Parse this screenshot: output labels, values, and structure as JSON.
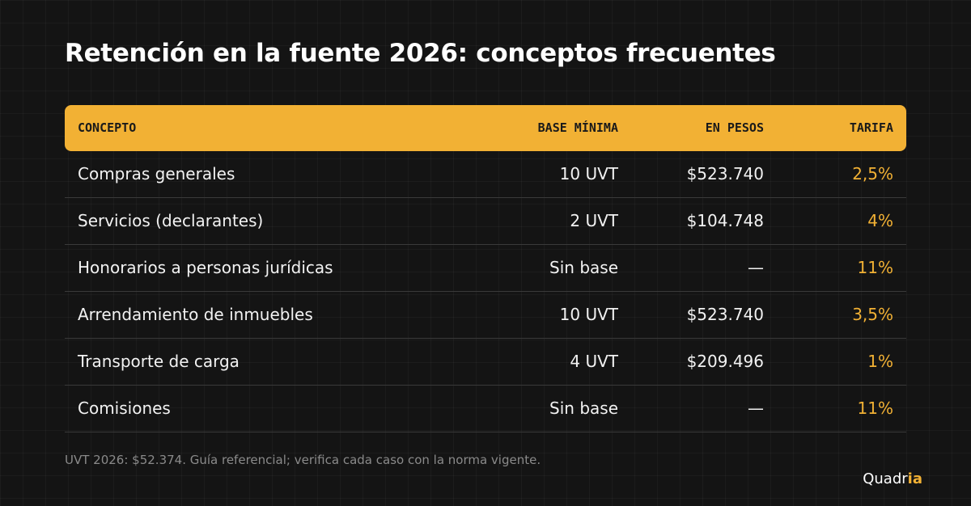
{
  "header": {
    "title": "Retención en la fuente 2026: conceptos frecuentes"
  },
  "table": {
    "columns": [
      "CONCEPTO",
      "BASE MÍNIMA",
      "EN PESOS",
      "TARIFA"
    ],
    "rows": [
      [
        "Compras generales",
        "10 UVT",
        "$523.740",
        "2,5%"
      ],
      [
        "Servicios (declarantes)",
        "2 UVT",
        "$104.748",
        "4%"
      ],
      [
        "Honorarios a personas jurídicas",
        "Sin base",
        "—",
        "11%"
      ],
      [
        "Arrendamiento de inmuebles",
        "10 UVT",
        "$523.740",
        "3,5%"
      ],
      [
        "Transporte de carga",
        "4 UVT",
        "$209.496",
        "1%"
      ],
      [
        "Comisiones",
        "Sin base",
        "—",
        "11%"
      ]
    ]
  },
  "footnote": "UVT 2026: $52.374. Guía referencial; verifica cada caso con la norma vigente.",
  "brand": {
    "prefix": "Quadr",
    "highlight": "ia"
  }
}
